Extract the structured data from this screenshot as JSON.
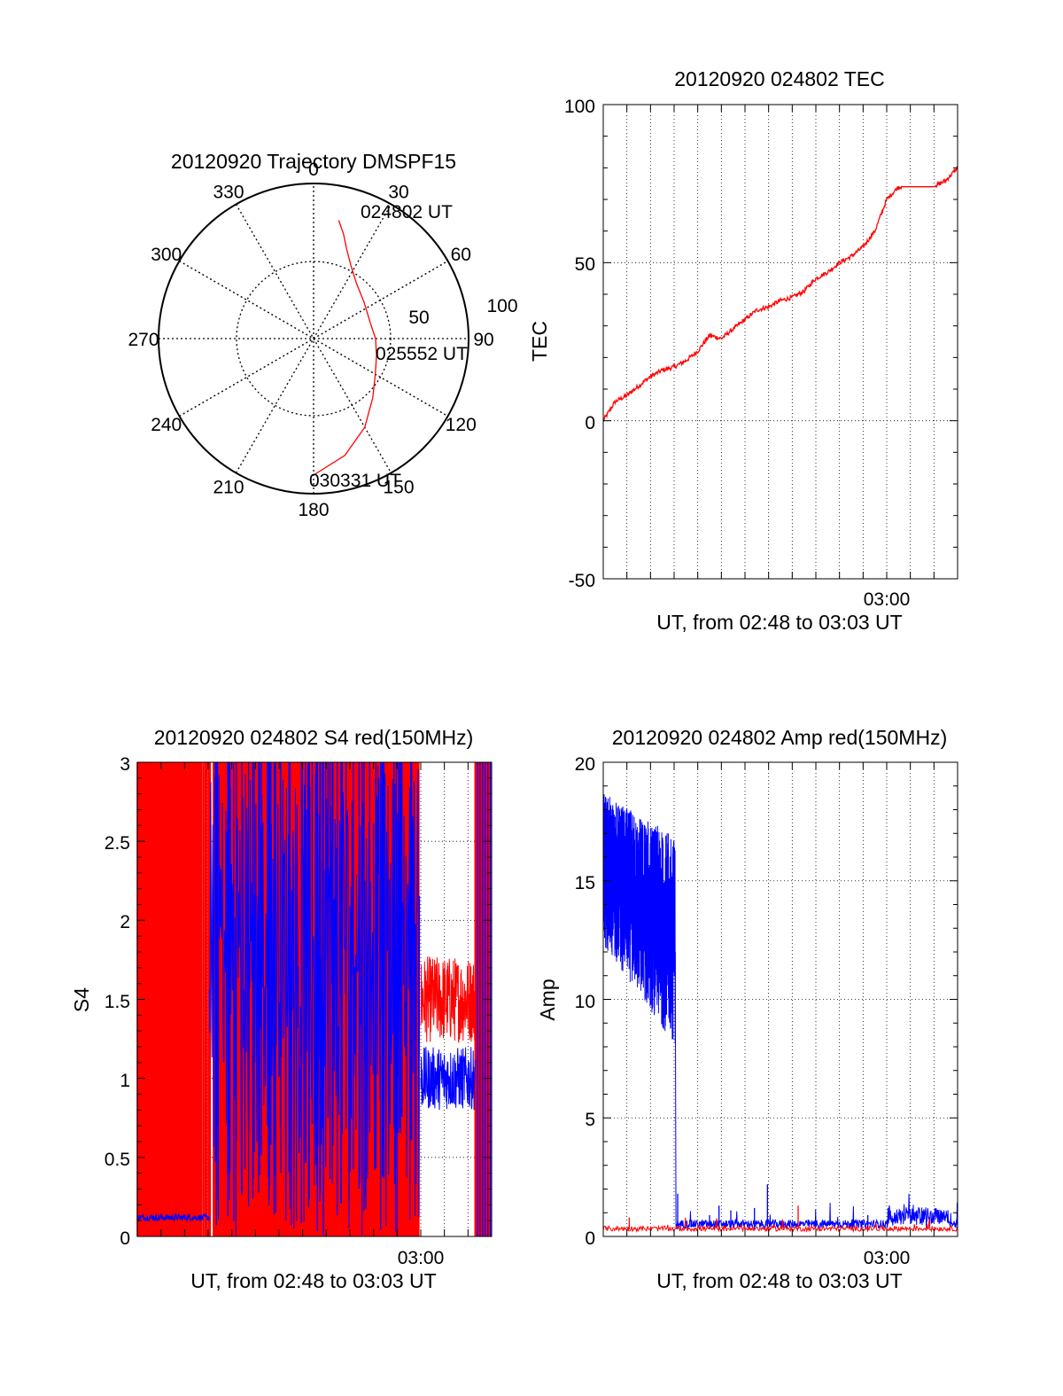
{
  "chart_data": [
    {
      "id": "trajectory",
      "type": "polar-line",
      "title": "20120920 Trajectory DMSPF15",
      "angle_ticks": [
        "0",
        "30",
        "60",
        "90",
        "120",
        "150",
        "180",
        "210",
        "240",
        "270",
        "300",
        "330"
      ],
      "radial_ticks": [
        "50",
        "100"
      ],
      "rlim": [
        0,
        100
      ],
      "grid": true,
      "time_labels": [
        "024802 UT",
        "025552 UT",
        "030331 UT"
      ],
      "series": [
        {
          "color": "#ff0000",
          "points": [
            {
              "az": 12,
              "zen": 78
            },
            {
              "az": 16,
              "zen": 70
            },
            {
              "az": 20,
              "zen": 62
            },
            {
              "az": 27,
              "zen": 53
            },
            {
              "az": 38,
              "zen": 45
            },
            {
              "az": 55,
              "zen": 40
            },
            {
              "az": 75,
              "zen": 38
            },
            {
              "az": 90,
              "zen": 40
            },
            {
              "az": 105,
              "zen": 42
            },
            {
              "az": 120,
              "zen": 46
            },
            {
              "az": 135,
              "zen": 54
            },
            {
              "az": 150,
              "zen": 66
            },
            {
              "az": 165,
              "zen": 78
            },
            {
              "az": 180,
              "zen": 88
            }
          ]
        }
      ]
    },
    {
      "id": "tec",
      "type": "line",
      "title": "20120920 024802 TEC",
      "ylabel": "TEC",
      "xlabel": "UT, from 02:48 to 03:03 UT",
      "xtick_labels": [
        "03:00"
      ],
      "ytick_labels": [
        "-50",
        "0",
        "50",
        "100"
      ],
      "ylim": [
        -50,
        100
      ],
      "xlim": [
        0,
        15
      ],
      "grid": true,
      "series": [
        {
          "color": "#ff0000",
          "x": [
            0,
            0.5,
            1,
            1.5,
            2,
            2.5,
            3,
            3.5,
            4,
            4.5,
            5,
            5.5,
            6,
            6.5,
            7,
            7.5,
            8,
            8.5,
            9,
            9.5,
            10,
            10.5,
            11,
            11.5,
            12,
            12.5,
            13,
            13.5,
            14,
            14.5,
            15
          ],
          "y": [
            0,
            6,
            8,
            11,
            14,
            16,
            17,
            19,
            22,
            27,
            26,
            29,
            32,
            35,
            36,
            38,
            39,
            41,
            45,
            47,
            50,
            52,
            55,
            60,
            70,
            74,
            74,
            74,
            74,
            76,
            80
          ]
        }
      ]
    },
    {
      "id": "s4",
      "type": "line",
      "title": "20120920 024802 S4 red(150MHz)",
      "ylabel": "S4",
      "xlabel": "UT, from 02:48 to 03:03 UT",
      "xtick_labels": [
        "03:00"
      ],
      "ytick_labels": [
        "0",
        "0.5",
        "1",
        "1.5",
        "2",
        "2.5",
        "3"
      ],
      "ylim": [
        0,
        3
      ],
      "xlim": [
        0,
        15
      ],
      "grid": true,
      "series": [
        {
          "color": "#ff0000",
          "description_values": "rapidly oscillating 0–3 until 03:00, then 1.2–1.9"
        },
        {
          "color": "#0000ff",
          "description_values": "about 0.12 until 02:51, then oscillating 0–3 until 03:00, then 0.8–1.2"
        }
      ]
    },
    {
      "id": "amp",
      "type": "line",
      "title": "20120920 024802 Amp red(150MHz)",
      "ylabel": "Amp",
      "xlabel": "UT, from 02:48 to 03:03 UT",
      "xtick_labels": [
        "03:00"
      ],
      "ytick_labels": [
        "0",
        "5",
        "10",
        "15",
        "20"
      ],
      "ylim": [
        0,
        20
      ],
      "xlim": [
        0,
        15
      ],
      "grid": true,
      "series": [
        {
          "color": "#0000ff",
          "description_values": "about 13–19 decaying to 10–15 until 02:51, then near 0.2–1"
        },
        {
          "color": "#ff0000",
          "description_values": "near 0.2–0.5 throughout"
        }
      ]
    }
  ]
}
